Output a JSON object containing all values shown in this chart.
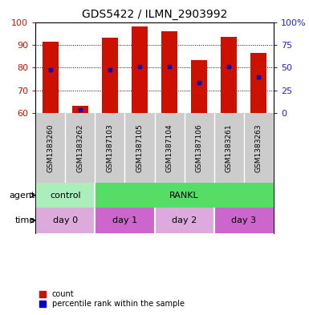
{
  "title": "GDS5422 / ILMN_2903992",
  "samples": [
    "GSM1383260",
    "GSM1383262",
    "GSM1387103",
    "GSM1387105",
    "GSM1387104",
    "GSM1387106",
    "GSM1383261",
    "GSM1383263"
  ],
  "bar_tops": [
    91.5,
    63.5,
    93.0,
    98.0,
    96.0,
    83.5,
    93.5,
    86.5
  ],
  "bar_bottom": 60,
  "percentile_ranks": [
    79.0,
    61.5,
    79.0,
    80.5,
    80.5,
    73.5,
    80.5,
    76.0
  ],
  "ylim_left": [
    60,
    100
  ],
  "yticks_left": [
    60,
    70,
    80,
    90,
    100
  ],
  "yticks_right": [
    0,
    25,
    50,
    75,
    100
  ],
  "yticklabels_right": [
    "0",
    "25",
    "50",
    "75",
    "100%"
  ],
  "bar_color": "#cc1100",
  "percentile_color": "#0000cc",
  "bar_width": 0.55,
  "agent_groups": [
    {
      "label": "control",
      "start": 0,
      "end": 2,
      "color": "#aaeebb"
    },
    {
      "label": "RANKL",
      "start": 2,
      "end": 8,
      "color": "#55dd66"
    }
  ],
  "time_groups": [
    {
      "label": "day 0",
      "start": 0,
      "end": 2,
      "color": "#ddaadd"
    },
    {
      "label": "day 1",
      "start": 2,
      "end": 4,
      "color": "#cc66cc"
    },
    {
      "label": "day 2",
      "start": 4,
      "end": 6,
      "color": "#ddaadd"
    },
    {
      "label": "day 3",
      "start": 6,
      "end": 8,
      "color": "#cc66cc"
    }
  ],
  "label_agent": "agent",
  "label_time": "time",
  "left_tick_color": "#cc1100",
  "right_tick_color": "#2222cc",
  "fig_bg": "#ffffff",
  "plot_bg": "#ffffff",
  "sample_label_bg": "#cccccc"
}
